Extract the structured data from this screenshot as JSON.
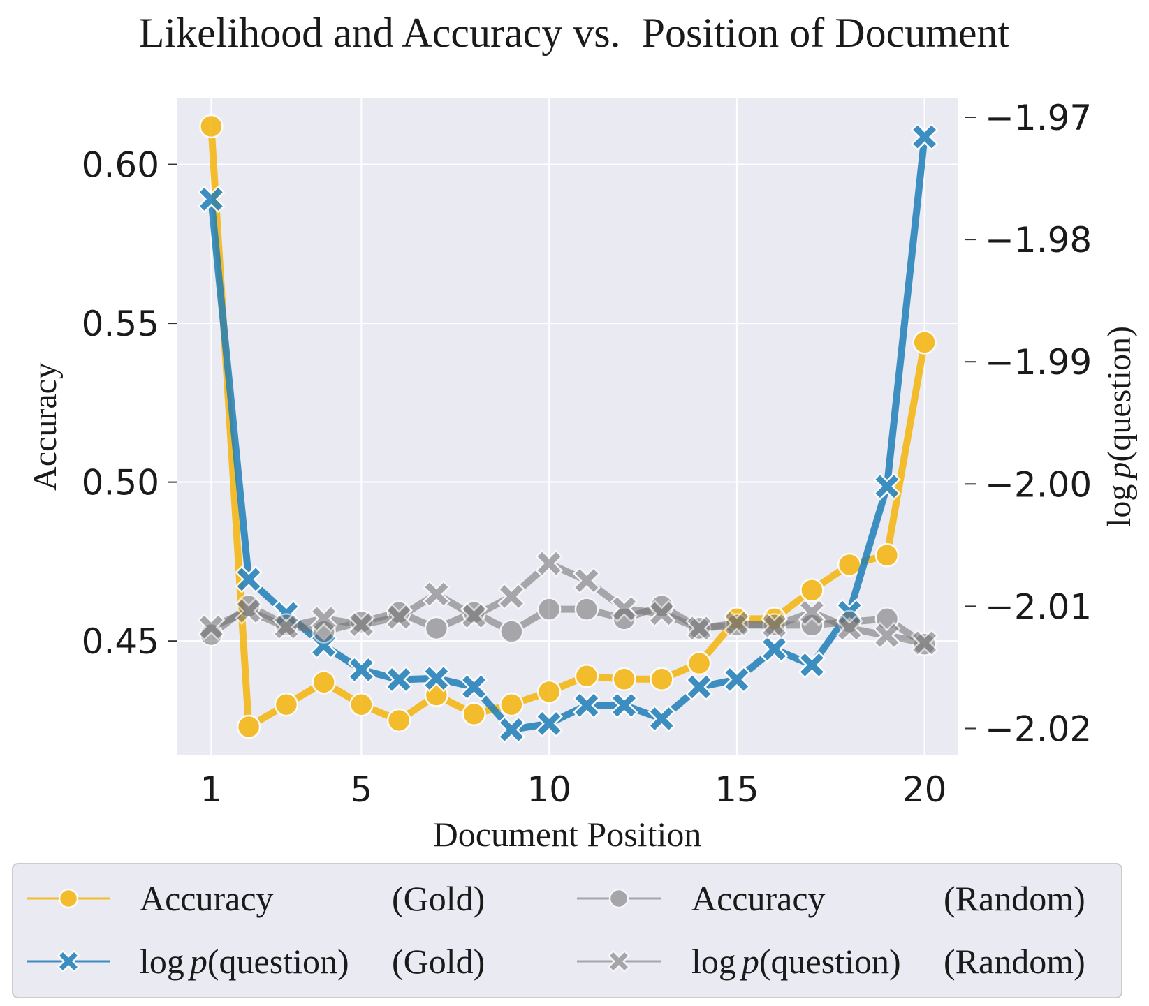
{
  "chart_data": {
    "type": "line",
    "title": "Likelihood and Accuracy vs.  Position of Document",
    "xlabel": "Document Position",
    "ylabel_left": "Accuracy",
    "ylabel_right": "log p(question)",
    "ylabel_right_parts": {
      "func": "log",
      "var": "p",
      "arg": "(question)"
    },
    "x": [
      1,
      2,
      3,
      4,
      5,
      6,
      7,
      8,
      9,
      10,
      11,
      12,
      13,
      14,
      15,
      16,
      17,
      18,
      19,
      20
    ],
    "xticks": [
      1,
      5,
      10,
      15,
      20
    ],
    "xlim": [
      0.1,
      20.9
    ],
    "yticks_left": [
      0.45,
      0.5,
      0.55,
      0.6
    ],
    "yticks_left_labels": [
      "0.45",
      "0.50",
      "0.55",
      "0.60"
    ],
    "ylim_left": [
      0.414,
      0.621
    ],
    "yticks_right": [
      -1.97,
      -1.98,
      -1.99,
      -2.0,
      -2.01,
      -2.02
    ],
    "yticks_right_labels": [
      "−1.97",
      "−1.98",
      "−1.99",
      "−2.00",
      "−2.01",
      "−2.02"
    ],
    "ylim_right": [
      -2.0222,
      -1.9684
    ],
    "grid": true,
    "legend_position": "below",
    "series": [
      {
        "id": "acc_gold",
        "name": "Accuracy (Gold)",
        "legend_text": "Accuracy",
        "legend_tag": "(Gold)",
        "axis": "left",
        "marker": "circle",
        "color": "#f5b40a",
        "opacity": 0.85,
        "values": [
          0.612,
          0.423,
          0.43,
          0.437,
          0.43,
          0.425,
          0.433,
          0.427,
          0.43,
          0.434,
          0.439,
          0.438,
          0.438,
          0.443,
          0.457,
          0.457,
          0.466,
          0.474,
          0.477,
          0.544
        ]
      },
      {
        "id": "logp_gold",
        "name": "log p(question) (Gold)",
        "legend_text": {
          "func": "log",
          "var": "p",
          "arg": "(question)"
        },
        "legend_tag": "(Gold)",
        "axis": "right",
        "marker": "x",
        "color": "#1f7eb8",
        "opacity": 0.85,
        "values": [
          -1.9767,
          -2.0078,
          -2.0106,
          -2.0132,
          -2.0152,
          -2.016,
          -2.0159,
          -2.0166,
          -2.0201,
          -2.0196,
          -2.0181,
          -2.0181,
          -2.0192,
          -2.0166,
          -2.016,
          -2.0135,
          -2.0148,
          -2.0105,
          -2.0002,
          -1.9716
        ]
      },
      {
        "id": "acc_random",
        "name": "Accuracy (Random)",
        "legend_text": "Accuracy",
        "legend_tag": "(Random)",
        "axis": "left",
        "marker": "circle",
        "color": "#707070",
        "opacity": 0.55,
        "values": [
          0.452,
          0.461,
          0.455,
          0.453,
          0.456,
          0.459,
          0.454,
          0.459,
          0.453,
          0.46,
          0.46,
          0.457,
          0.461,
          0.454,
          0.455,
          0.455,
          0.455,
          0.456,
          0.457,
          0.449
        ]
      },
      {
        "id": "logp_random",
        "name": "log p(question) (Random)",
        "legend_text": {
          "func": "log",
          "var": "p",
          "arg": "(question)"
        },
        "legend_tag": "(Random)",
        "axis": "right",
        "marker": "x",
        "color": "#707070",
        "opacity": 0.55,
        "values": [
          -2.0117,
          -2.0104,
          -2.0117,
          -2.011,
          -2.0115,
          -2.0109,
          -2.009,
          -2.0108,
          -2.0092,
          -2.0065,
          -2.0079,
          -2.0102,
          -2.0106,
          -2.0118,
          -2.0114,
          -2.0116,
          -2.0105,
          -2.0118,
          -2.0124,
          -2.013
        ]
      }
    ]
  }
}
